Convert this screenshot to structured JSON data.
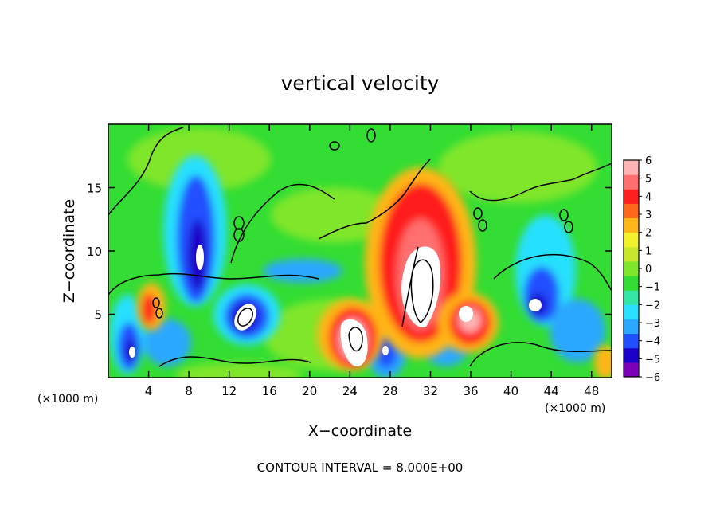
{
  "chart_data": {
    "type": "heatmap",
    "title": "vertical velocity",
    "xlabel": "X−coordinate",
    "ylabel": "Z−coordinate",
    "x_unit_left": "(×1000 m)",
    "x_unit_right": "(×1000 m)",
    "footer": "CONTOUR INTERVAL = 8.000E+00",
    "xlim": [
      0,
      50
    ],
    "ylim": [
      0,
      20
    ],
    "x_ticks": [
      4,
      8,
      12,
      16,
      20,
      24,
      28,
      32,
      36,
      40,
      44,
      48
    ],
    "y_ticks": [
      5,
      10,
      15
    ],
    "colorbar": {
      "range": [
        -6,
        6
      ],
      "ticks": [
        6,
        5,
        4,
        3,
        2,
        1,
        0,
        -1,
        -2,
        -3,
        -4,
        -5,
        -6
      ],
      "colors": [
        "#7a00b8",
        "#1a00c8",
        "#2050ff",
        "#2aa8ff",
        "#28e0ff",
        "#33e6a8",
        "#33dd33",
        "#7fe62b",
        "#c8e62b",
        "#f2f22b",
        "#ffb619",
        "#ff6a1a",
        "#ff1f1f",
        "#ff6f6f",
        "#ffb3b3"
      ]
    },
    "features": [
      {
        "x": 9.0,
        "z": 11.0,
        "value": -6
      },
      {
        "x": 9.0,
        "z": 9.5,
        "value": -6
      },
      {
        "x": 13.5,
        "z": 5.0,
        "value": -6
      },
      {
        "x": 2.0,
        "z": 2.0,
        "value": -6
      },
      {
        "x": 27.0,
        "z": 2.3,
        "value": -5
      },
      {
        "x": 42.5,
        "z": 5.5,
        "value": -6
      },
      {
        "x": 24.5,
        "z": 3.0,
        "value": 6
      },
      {
        "x": 31.5,
        "z": 7.5,
        "value": 6
      },
      {
        "x": 36.0,
        "z": 4.7,
        "value": 6
      },
      {
        "x": 3.8,
        "z": 5.5,
        "value": 4
      },
      {
        "x": 31.0,
        "z": 12.5,
        "value": 4
      },
      {
        "x": 49.5,
        "z": 1.5,
        "value": 4
      }
    ]
  }
}
